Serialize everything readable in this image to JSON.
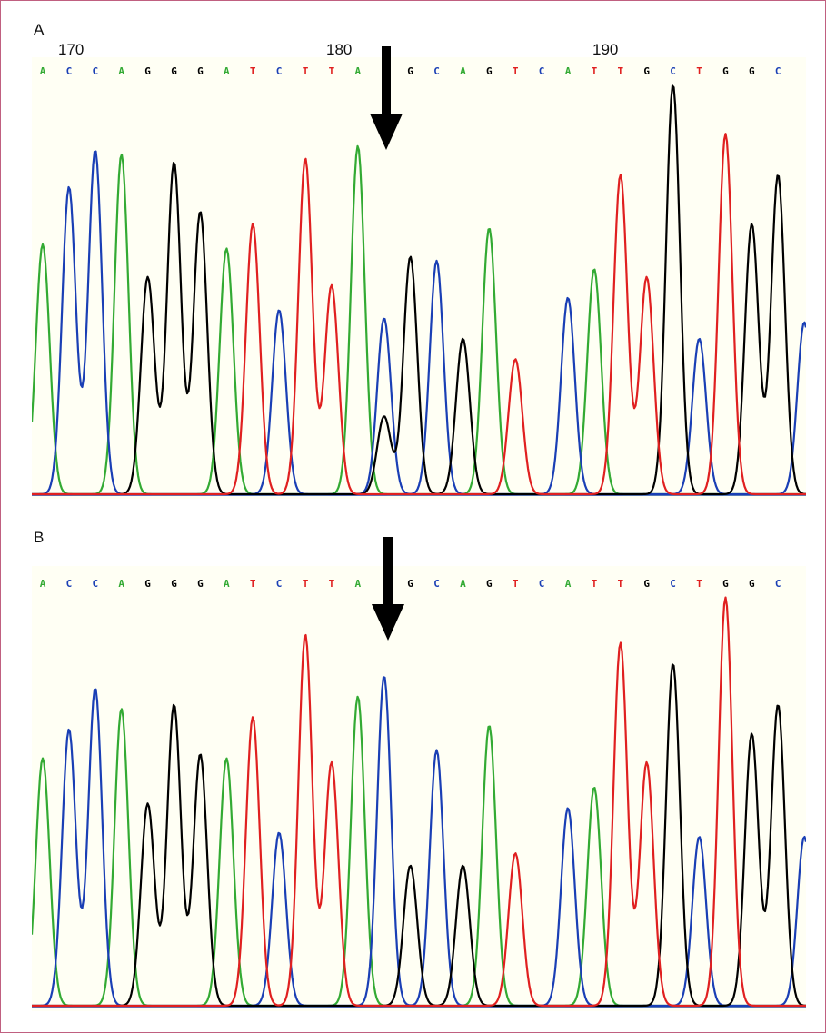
{
  "figure": {
    "colors": {
      "A": "#33aa33",
      "C": "#1a3fb5",
      "G": "#000000",
      "T": "#e02020"
    },
    "arrow_color": "#000000",
    "background": "#fffff4"
  },
  "chart_data": [
    {
      "type": "line",
      "panel_label": "A",
      "title": "",
      "xlabel": "",
      "ylabel": "",
      "position_labels": [
        {
          "position": 170,
          "label": "170"
        },
        {
          "position": 180,
          "label": "180"
        },
        {
          "position": 190,
          "label": "190"
        }
      ],
      "base_calls": [
        "A",
        "C",
        "C",
        "A",
        "G",
        "G",
        "G",
        "A",
        "T",
        "C",
        "T",
        "T",
        "A",
        "",
        "G",
        "C",
        "A",
        "G",
        "T",
        "C",
        "A",
        "T",
        "T",
        "G",
        "C",
        "T",
        "G",
        "G",
        "C"
      ],
      "arrow_index": 13,
      "series": [
        {
          "name": "A",
          "peaks": [
            [
              0,
              0.61
            ],
            [
              3,
              0.83
            ],
            [
              7,
              0.6
            ],
            [
              12,
              0.85
            ],
            [
              17,
              0.65
            ],
            [
              21,
              0.55
            ]
          ]
        },
        {
          "name": "C",
          "peaks": [
            [
              1,
              0.75
            ],
            [
              2,
              0.84
            ],
            [
              9,
              0.45
            ],
            [
              13,
              0.43
            ],
            [
              15,
              0.57
            ],
            [
              20,
              0.48
            ],
            [
              25,
              0.38
            ],
            [
              29,
              0.42
            ]
          ]
        },
        {
          "name": "G",
          "peaks": [
            [
              4,
              0.53
            ],
            [
              5,
              0.81
            ],
            [
              6,
              0.69
            ],
            [
              13,
              0.19
            ],
            [
              14,
              0.58
            ],
            [
              16,
              0.38
            ],
            [
              24,
              1.0
            ],
            [
              27,
              0.66
            ],
            [
              28,
              0.78
            ]
          ]
        },
        {
          "name": "T",
          "peaks": [
            [
              8,
              0.66
            ],
            [
              10,
              0.82
            ],
            [
              11,
              0.51
            ],
            [
              18,
              0.33
            ],
            [
              22,
              0.78
            ],
            [
              23,
              0.53
            ],
            [
              26,
              0.88
            ]
          ]
        }
      ]
    },
    {
      "type": "line",
      "panel_label": "B",
      "title": "",
      "xlabel": "",
      "ylabel": "",
      "base_calls": [
        "A",
        "C",
        "C",
        "A",
        "G",
        "G",
        "G",
        "A",
        "T",
        "C",
        "T",
        "T",
        "A",
        "",
        "G",
        "C",
        "A",
        "G",
        "T",
        "C",
        "A",
        "T",
        "T",
        "G",
        "C",
        "T",
        "G",
        "G",
        "C"
      ],
      "arrow_index": 13,
      "series": [
        {
          "name": "A",
          "peaks": [
            [
              0,
              0.6
            ],
            [
              3,
              0.72
            ],
            [
              7,
              0.6
            ],
            [
              12,
              0.75
            ],
            [
              17,
              0.68
            ],
            [
              21,
              0.53
            ]
          ]
        },
        {
          "name": "C",
          "peaks": [
            [
              1,
              0.67
            ],
            [
              2,
              0.77
            ],
            [
              9,
              0.42
            ],
            [
              13,
              0.8
            ],
            [
              15,
              0.62
            ],
            [
              20,
              0.48
            ],
            [
              25,
              0.41
            ],
            [
              29,
              0.41
            ]
          ]
        },
        {
          "name": "G",
          "peaks": [
            [
              4,
              0.49
            ],
            [
              5,
              0.73
            ],
            [
              6,
              0.61
            ],
            [
              14,
              0.34
            ],
            [
              16,
              0.34
            ],
            [
              24,
              0.83
            ],
            [
              27,
              0.66
            ],
            [
              28,
              0.73
            ]
          ]
        },
        {
          "name": "T",
          "peaks": [
            [
              8,
              0.7
            ],
            [
              10,
              0.9
            ],
            [
              11,
              0.59
            ],
            [
              18,
              0.37
            ],
            [
              22,
              0.88
            ],
            [
              23,
              0.59
            ],
            [
              26,
              0.99
            ]
          ]
        }
      ]
    }
  ]
}
